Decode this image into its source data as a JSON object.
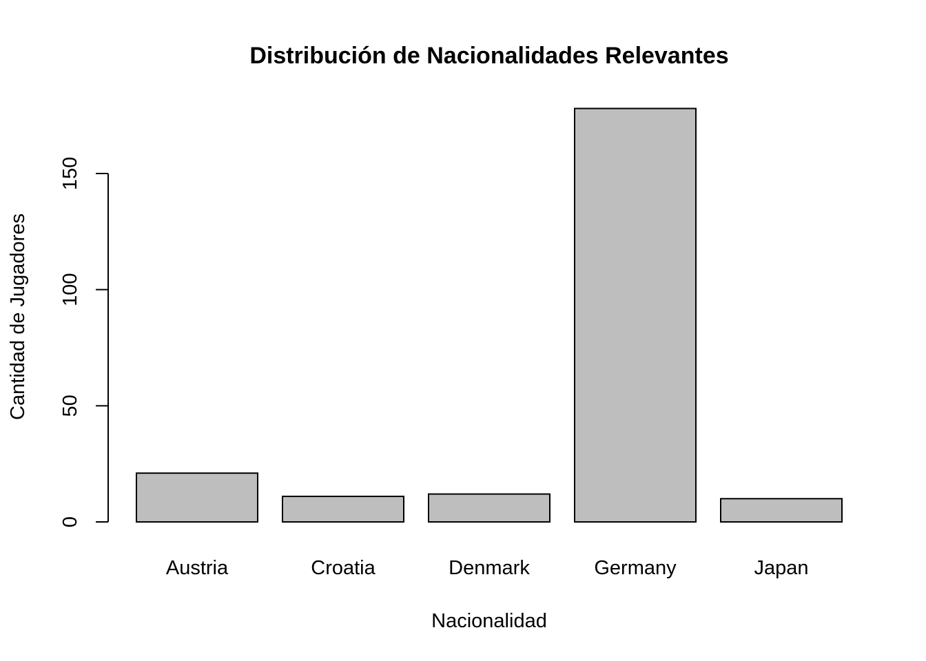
{
  "chart_data": {
    "type": "bar",
    "title": "Distribución de Nacionalidades Relevantes",
    "xlabel": "Nacionalidad",
    "ylabel": "Cantidad de Jugadores",
    "categories": [
      "Austria",
      "Croatia",
      "Denmark",
      "Germany",
      "Japan"
    ],
    "values": [
      21,
      11,
      12,
      178,
      10
    ],
    "ylim": [
      0,
      178
    ],
    "yticks": [
      0,
      50,
      100,
      150
    ],
    "grid": false,
    "bar_color": "#bebebe",
    "bar_border_color": "#000000"
  }
}
